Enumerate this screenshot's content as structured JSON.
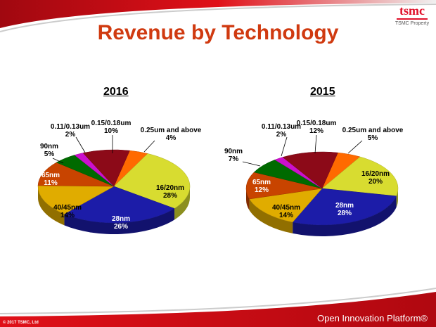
{
  "title": "Revenue by Technology",
  "logo": {
    "text": "tsmc",
    "caption": "TSMC Property"
  },
  "footer": {
    "copyright": "© 2017 TSMC, Ltd",
    "platform": "Open Innovation Platform®"
  },
  "colors": {
    "brand_red": "#d01018",
    "title": "#d03a10"
  },
  "chart_data": [
    {
      "type": "pie",
      "title": "2016",
      "categories": [
        "0.25um and above",
        "16/20nm",
        "28nm",
        "40/45nm",
        "65nm",
        "90nm",
        "0.11/0.13um",
        "0.15/0.18um"
      ],
      "values": [
        4,
        28,
        26,
        14,
        11,
        5,
        2,
        10
      ],
      "labels": [
        "4%",
        "28%",
        "26%",
        "14%",
        "11%",
        "5%",
        "2%",
        "10%"
      ],
      "colors": [
        "#ff6a00",
        "#d8dc30",
        "#1c1ca8",
        "#e0ac00",
        "#c84400",
        "#006a00",
        "#cc10cc",
        "#8c0a18"
      ]
    },
    {
      "type": "pie",
      "title": "2015",
      "categories": [
        "0.25um and above",
        "16/20nm",
        "28nm",
        "40/45nm",
        "65nm",
        "90nm",
        "0.11/0.13um",
        "0.15/0.18um"
      ],
      "values": [
        5,
        20,
        28,
        14,
        12,
        7,
        2,
        12
      ],
      "labels": [
        "5%",
        "20%",
        "28%",
        "14%",
        "12%",
        "7%",
        "2%",
        "12%"
      ],
      "colors": [
        "#ff6a00",
        "#d8dc30",
        "#1c1ca8",
        "#e0ac00",
        "#c84400",
        "#006a00",
        "#cc10cc",
        "#8c0a18"
      ]
    }
  ]
}
